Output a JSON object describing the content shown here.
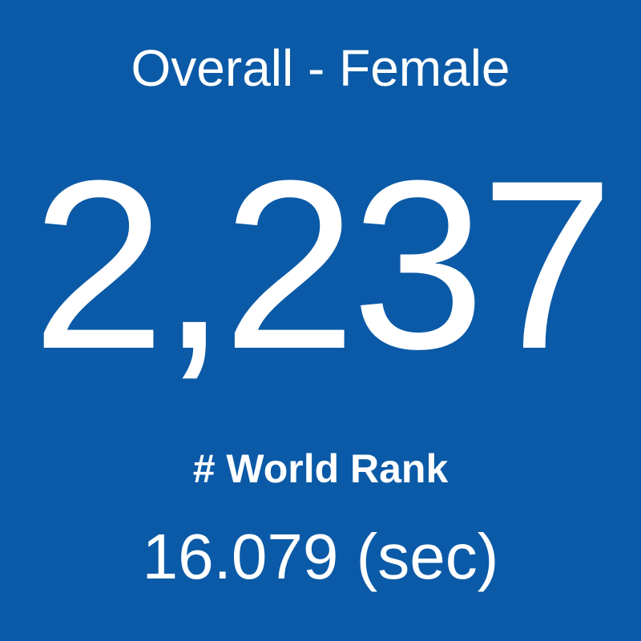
{
  "tile": {
    "title": "Overall - Female",
    "value": "2,237",
    "label": "# World Rank",
    "time": "16.079 (sec)"
  }
}
